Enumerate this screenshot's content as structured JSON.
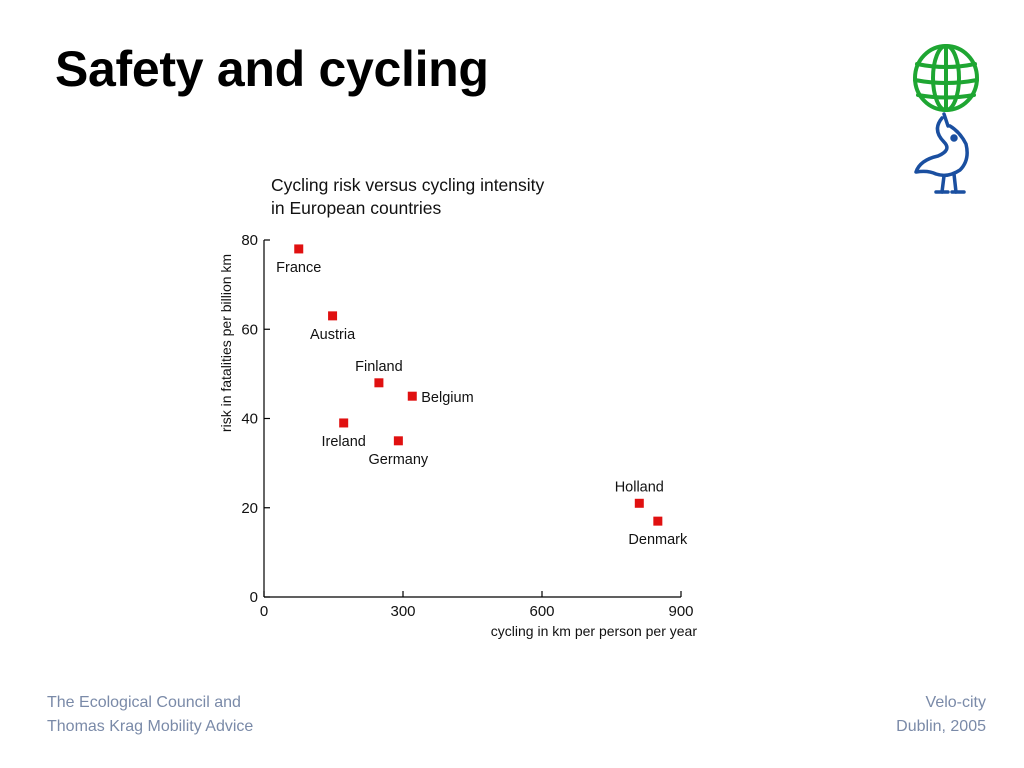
{
  "slide": {
    "title": "Safety and cycling"
  },
  "footer": {
    "left_line1": "The Ecological Council and",
    "left_line2": "Thomas Krag Mobility Advice",
    "right_line1": "Velo-city",
    "right_line2": "Dublin, 2005"
  },
  "colors": {
    "point": "#e01010",
    "logo_green": "#1ea632",
    "logo_blue": "#1a4fa0",
    "footer_text": "#7a8aa8"
  },
  "icons": {
    "logo": "globe-bird-logo-icon"
  },
  "chart_data": {
    "type": "scatter",
    "title_line1": "Cycling risk versus cycling intensity",
    "title_line2": "in European countries",
    "xlabel": "cycling in km per person per year",
    "ylabel": "risk in fatalities per billion km",
    "xlim": [
      0,
      900
    ],
    "ylim": [
      0,
      80
    ],
    "xticks": [
      0,
      300,
      600,
      900
    ],
    "yticks": [
      0,
      20,
      40,
      60,
      80
    ],
    "grid": false,
    "points": [
      {
        "label": "France",
        "x": 75,
        "y": 78,
        "label_pos": "below"
      },
      {
        "label": "Austria",
        "x": 148,
        "y": 63,
        "label_pos": "below"
      },
      {
        "label": "Finland",
        "x": 248,
        "y": 48,
        "label_pos": "above"
      },
      {
        "label": "Belgium",
        "x": 320,
        "y": 45,
        "label_pos": "right"
      },
      {
        "label": "Ireland",
        "x": 172,
        "y": 39,
        "label_pos": "below"
      },
      {
        "label": "Germany",
        "x": 290,
        "y": 35,
        "label_pos": "below"
      },
      {
        "label": "Holland",
        "x": 810,
        "y": 21,
        "label_pos": "above"
      },
      {
        "label": "Denmark",
        "x": 850,
        "y": 17,
        "label_pos": "below"
      }
    ]
  }
}
